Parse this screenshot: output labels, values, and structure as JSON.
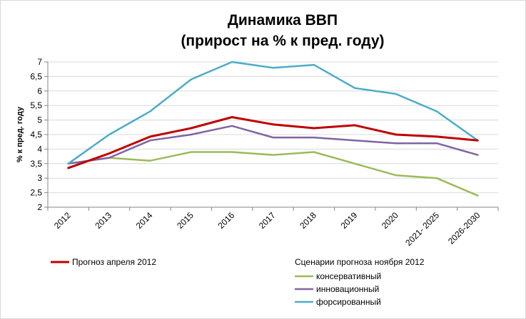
{
  "chart_data": {
    "type": "line",
    "title": "Динамика ВВП",
    "subtitle": "(прирост на % к пред. году)",
    "xlabel": "",
    "ylabel": "% к пред. году",
    "ylim": [
      2,
      7
    ],
    "yticks": [
      "2",
      "2,5",
      "3",
      "3,5",
      "4",
      "4,5",
      "5",
      "5,5",
      "6",
      "6,5",
      "7"
    ],
    "categories": [
      "2012",
      "2013",
      "2014",
      "2015",
      "2016",
      "2017",
      "2018",
      "2019",
      "2020",
      "2021- 2025",
      "2026-2030"
    ],
    "grid": true,
    "legend_position": "bottom",
    "legend_group_title": "Сценарии прогноза ноября 2012",
    "series": [
      {
        "name": "Прогноз апреля 2012",
        "color": "#c00000",
        "values": [
          3.35,
          3.85,
          4.43,
          4.72,
          5.1,
          4.85,
          4.72,
          4.82,
          4.5,
          4.43,
          4.3
        ]
      },
      {
        "name": "консервативный",
        "color": "#9bbb59",
        "values": [
          3.5,
          3.7,
          3.6,
          3.9,
          3.9,
          3.8,
          3.9,
          3.5,
          3.1,
          3.0,
          2.4
        ]
      },
      {
        "name": "инновационный",
        "color": "#8064a2",
        "values": [
          3.5,
          3.7,
          4.3,
          4.5,
          4.8,
          4.4,
          4.4,
          4.3,
          4.2,
          4.2,
          3.8
        ]
      },
      {
        "name": "форсированный",
        "color": "#4bacc6",
        "values": [
          3.5,
          4.5,
          5.3,
          6.4,
          7.0,
          6.8,
          6.9,
          6.1,
          5.9,
          5.3,
          4.3
        ]
      }
    ]
  }
}
